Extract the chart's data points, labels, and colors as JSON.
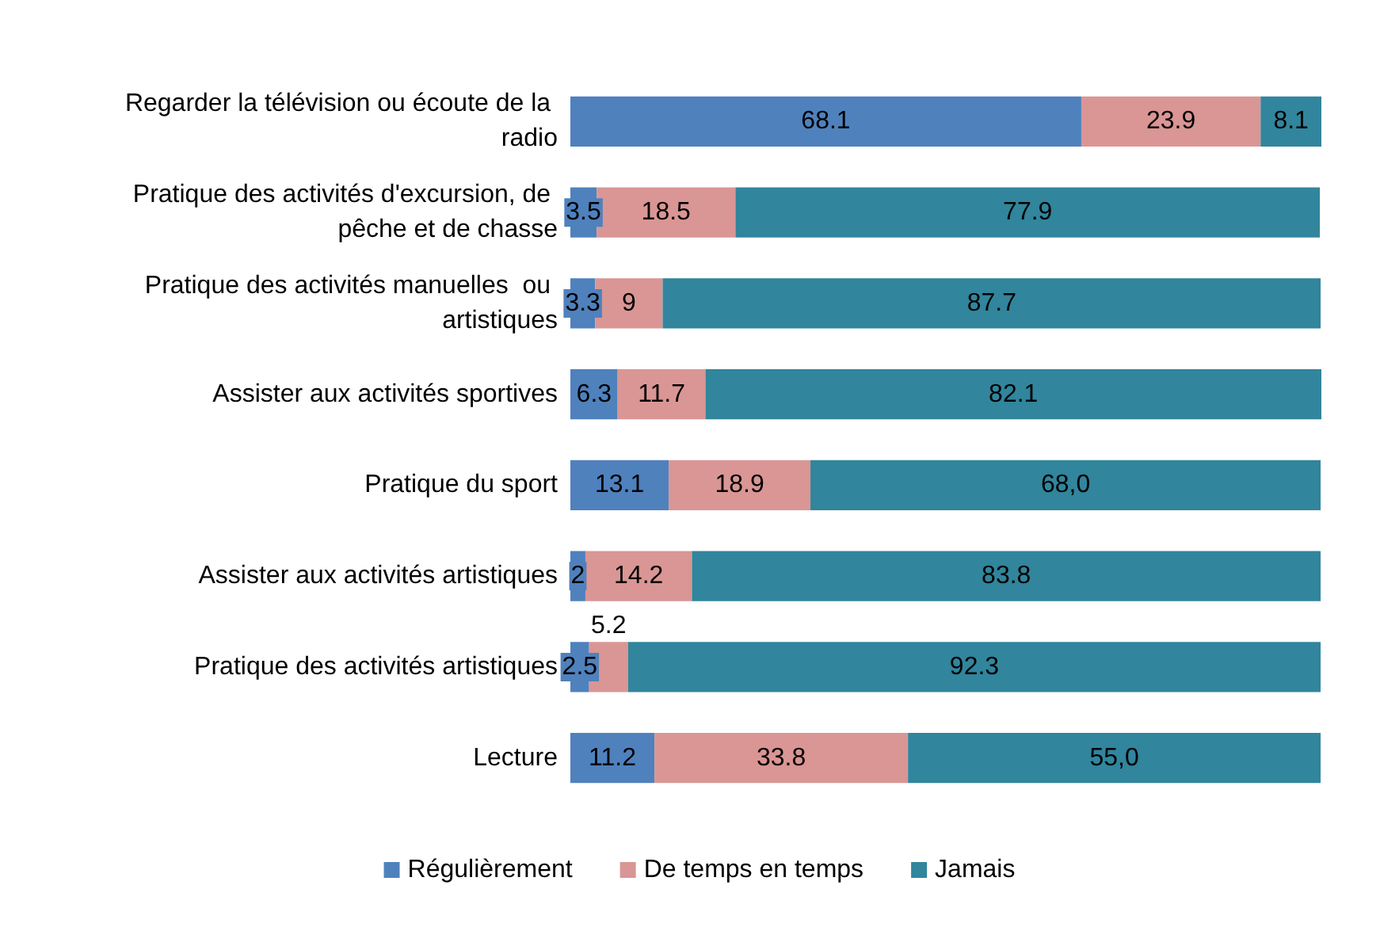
{
  "chart_data": {
    "type": "bar",
    "orientation": "horizontal",
    "stacked": true,
    "legend": "bottom",
    "categories": [
      "Regarder la télévision ou écoute de la radio",
      "Pratique des activités d'excursion, de pêche et de chasse",
      "Pratique des activités manuelles  ou artistiques",
      "Assister aux activités sportives",
      "Pratique du sport",
      "Assister aux activités artistiques",
      "Pratique des activités artistiques",
      "Lecture"
    ],
    "series": [
      {
        "name": "Régulièrement",
        "color": "#4f81bd",
        "values": [
          68.1,
          3.5,
          3.3,
          6.3,
          13.1,
          2,
          2.5,
          11.2
        ],
        "value_labels": [
          "68.1",
          "3.5",
          "3.3",
          "6.3",
          "13.1",
          "2",
          "2.5",
          "11.2"
        ]
      },
      {
        "name": "De temps en temps",
        "color": "#d99694",
        "values": [
          23.9,
          18.5,
          9,
          11.7,
          18.9,
          14.2,
          5.2,
          33.8
        ],
        "value_labels": [
          "23.9",
          "18.5",
          "9",
          "11.7",
          "18.9",
          "14.2",
          "5.2",
          "33.8"
        ]
      },
      {
        "name": "Jamais",
        "color": "#31859c",
        "values": [
          8.1,
          77.9,
          87.7,
          82.1,
          68.0,
          83.8,
          92.3,
          55.0
        ],
        "value_labels": [
          "8.1",
          "77.9",
          "87.7",
          "82.1",
          "68,0",
          "83.8",
          "92.3",
          "55,0"
        ]
      }
    ]
  }
}
